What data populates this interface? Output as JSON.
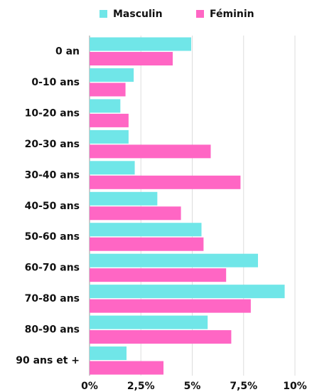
{
  "chart_data": {
    "type": "barh",
    "categories": [
      "0 an",
      "0-10 ans",
      "10-20 ans",
      "20-30 ans",
      "30-40 ans",
      "40-50 ans",
      "50-60 ans",
      "60-70 ans",
      "70-80 ans",
      "80-90 ans",
      "90 ans et +"
    ],
    "series": [
      {
        "name": "Masculin",
        "color": "#70e6e8",
        "values": [
          4.95,
          2.15,
          1.5,
          1.9,
          2.2,
          3.3,
          5.45,
          8.2,
          9.5,
          5.75,
          1.8
        ]
      },
      {
        "name": "Féminin",
        "color": "#ff66c4",
        "values": [
          4.05,
          1.75,
          1.9,
          5.9,
          7.35,
          4.45,
          5.55,
          6.65,
          7.85,
          6.9,
          3.6
        ]
      }
    ],
    "xlim": [
      0,
      10
    ],
    "xticks": [
      {
        "value": 0,
        "label": "0%"
      },
      {
        "value": 2.5,
        "label": "2,5%"
      },
      {
        "value": 5,
        "label": "5%"
      },
      {
        "value": 7.5,
        "label": "7,5%"
      },
      {
        "value": 10,
        "label": "10%"
      }
    ],
    "grid": true,
    "legend": "top"
  }
}
